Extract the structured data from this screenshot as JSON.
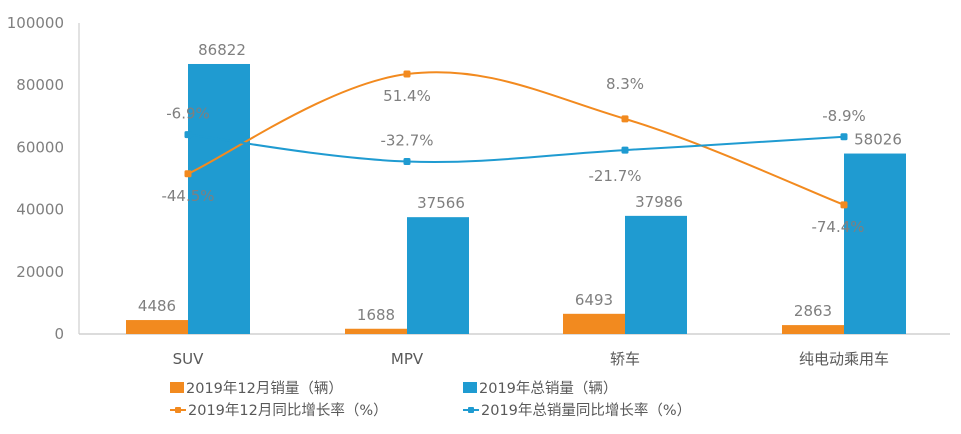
{
  "chart_data": {
    "type": "bar",
    "title": "",
    "categories": [
      "SUV",
      "MPV",
      "轿车",
      "纯电动乘用车"
    ],
    "y_axis": {
      "ticks": [
        "0",
        "20000",
        "40000",
        "60000",
        "80000",
        "100000"
      ],
      "min": 0,
      "max": 100000
    },
    "secondary_axis": {
      "visible": false,
      "unit": "%"
    },
    "series": [
      {
        "name": "2019年12月销量（辆）",
        "kind": "bar",
        "color": "#F28A1F",
        "values": [
          4486,
          1688,
          6493,
          2863
        ],
        "labels": [
          "4486",
          "1688",
          "6493",
          "2863"
        ]
      },
      {
        "name": "2019年总销量（辆）",
        "kind": "bar",
        "color": "#1F9BD1",
        "values": [
          86822,
          37566,
          37986,
          58026
        ],
        "labels": [
          "86822",
          "37566",
          "37986",
          "58026"
        ]
      },
      {
        "name": "2019年12月同比增长率（%）",
        "kind": "line",
        "axis": "secondary",
        "color": "#F28A1F",
        "values": [
          -44.5,
          51.4,
          8.3,
          -74.4
        ],
        "labels": [
          "-44.5%",
          "51.4%",
          "8.3%",
          "-74.4%"
        ]
      },
      {
        "name": "2019年总销量同比增长率（%）",
        "kind": "line",
        "axis": "secondary",
        "color": "#1F9BD1",
        "values": [
          -6.9,
          -32.7,
          -21.7,
          -8.9
        ],
        "labels": [
          "-6.9%",
          "-32.7%",
          "-21.7%",
          "-8.9%"
        ]
      }
    ],
    "legend": {
      "position": "bottom"
    },
    "grid": false
  }
}
